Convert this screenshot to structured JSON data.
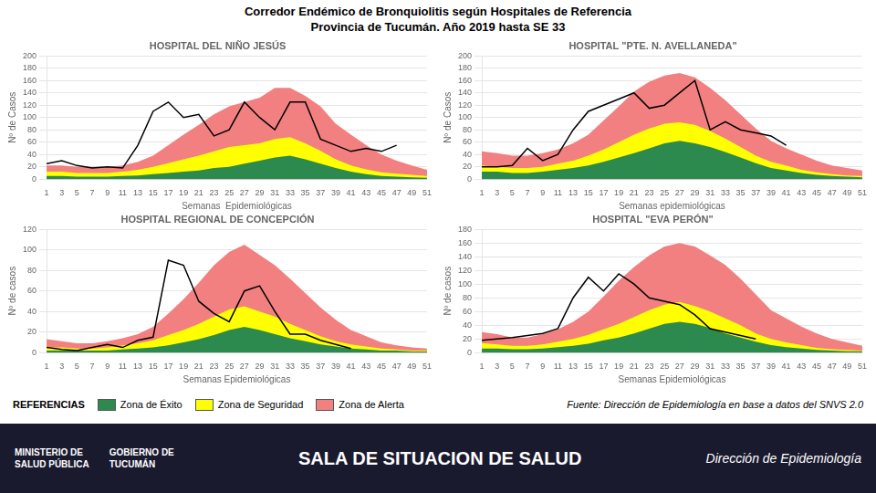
{
  "title": "Corredor Endémico de Bronquiolitis según Hospitales de Referencia",
  "subtitle": "Provincia de Tucumán.  Año 2019 hasta SE 33",
  "legend": "lower left",
  "annotations": [
    "REFERENCIAS",
    "Fuente: Dirección de Epidemiología en base a datos del SNVS 2.0",
    "MINISTERIO DE",
    "SALUD PÚBLICA",
    "GOBIERNO DE",
    "TUCUMÁN",
    "SALA DE SITUACION DE SALUD",
    "Dirección de Epidemiología"
  ],
  "chart_data": [
    {
      "type": "line",
      "title": "HOSPITAL DEL NIÑO JESÚS",
      "xlabel": "Semanas  Epidemiológicas",
      "ylabel": "Nº de Casos",
      "x": [
        1,
        3,
        5,
        7,
        9,
        11,
        13,
        15,
        17,
        19,
        21,
        23,
        25,
        27,
        29,
        31,
        33,
        35,
        37,
        39,
        41,
        43,
        45,
        47,
        49,
        51
      ],
      "xlim": [
        1,
        51
      ],
      "xticks": [
        1,
        3,
        5,
        7,
        9,
        11,
        13,
        15,
        17,
        19,
        21,
        23,
        25,
        27,
        29,
        31,
        33,
        35,
        37,
        39,
        41,
        43,
        45,
        47,
        49,
        51
      ],
      "ylim": [
        0,
        200
      ],
      "yticks": [
        0,
        20,
        40,
        60,
        80,
        100,
        120,
        140,
        160,
        180,
        200
      ],
      "grid": "y",
      "series": [
        {
          "name": "Zona de Éxito",
          "type": "area",
          "color": "#2d8a4e",
          "values": [
            5,
            5,
            4,
            4,
            4,
            5,
            6,
            8,
            10,
            12,
            14,
            18,
            20,
            25,
            30,
            35,
            38,
            32,
            25,
            18,
            12,
            8,
            5,
            4,
            3,
            2
          ]
        },
        {
          "name": "Zona de Seguridad",
          "type": "area",
          "color": "#ffff00",
          "values": [
            12,
            12,
            10,
            10,
            10,
            12,
            15,
            20,
            26,
            32,
            38,
            45,
            52,
            55,
            58,
            65,
            68,
            58,
            46,
            32,
            22,
            16,
            11,
            9,
            7,
            5
          ]
        },
        {
          "name": "Zona de Alerta",
          "type": "area",
          "color": "#f28080",
          "values": [
            22,
            22,
            20,
            20,
            20,
            22,
            28,
            38,
            55,
            72,
            88,
            105,
            118,
            125,
            132,
            148,
            148,
            135,
            118,
            90,
            72,
            55,
            40,
            30,
            22,
            15
          ]
        },
        {
          "type": "line",
          "color": "#000000",
          "values": [
            25,
            30,
            22,
            18,
            20,
            18,
            55,
            110,
            125,
            100,
            105,
            70,
            80,
            125,
            100,
            80,
            125,
            125,
            65,
            55,
            45,
            50,
            45,
            55,
            null,
            null
          ]
        }
      ]
    },
    {
      "type": "line",
      "title": "HOSPITAL \"PTE. N. AVELLANEDA\"",
      "xlabel": "Semanas epidemiológicas",
      "ylabel": "Nº de Casos",
      "x": [
        1,
        3,
        5,
        7,
        9,
        11,
        13,
        15,
        17,
        19,
        21,
        23,
        25,
        27,
        29,
        31,
        33,
        35,
        37,
        39,
        41,
        43,
        45,
        47,
        49,
        51
      ],
      "xlim": [
        1,
        51
      ],
      "xticks": [
        1,
        3,
        5,
        7,
        9,
        11,
        13,
        15,
        17,
        19,
        21,
        23,
        25,
        27,
        29,
        31,
        33,
        35,
        37,
        39,
        41,
        43,
        45,
        47,
        49,
        51
      ],
      "ylim": [
        0,
        200
      ],
      "yticks": [
        0,
        20,
        40,
        60,
        80,
        100,
        120,
        140,
        160,
        180,
        200
      ],
      "grid": "y",
      "series": [
        {
          "name": "Zona de Éxito",
          "type": "area",
          "color": "#2d8a4e",
          "values": [
            12,
            12,
            10,
            10,
            12,
            15,
            18,
            22,
            28,
            35,
            42,
            50,
            58,
            62,
            58,
            52,
            44,
            35,
            26,
            18,
            14,
            10,
            7,
            5,
            4,
            3
          ]
        },
        {
          "name": "Zona de Seguridad",
          "type": "area",
          "color": "#ffff00",
          "values": [
            22,
            20,
            18,
            18,
            20,
            25,
            30,
            38,
            48,
            60,
            72,
            82,
            90,
            92,
            88,
            78,
            66,
            52,
            38,
            28,
            22,
            15,
            11,
            8,
            6,
            5
          ]
        },
        {
          "name": "Zona de Alerta",
          "type": "area",
          "color": "#f28080",
          "values": [
            45,
            42,
            38,
            38,
            42,
            48,
            58,
            72,
            95,
            118,
            142,
            158,
            168,
            172,
            165,
            148,
            128,
            105,
            82,
            62,
            50,
            40,
            30,
            22,
            18,
            14
          ]
        },
        {
          "type": "line",
          "color": "#000000",
          "values": [
            20,
            20,
            22,
            50,
            30,
            40,
            80,
            110,
            120,
            130,
            140,
            115,
            120,
            140,
            160,
            80,
            93,
            80,
            75,
            70,
            55,
            null,
            null,
            null,
            null,
            null
          ]
        }
      ]
    },
    {
      "type": "line",
      "title": "HOSPITAL REGIONAL DE CONCEPCIÓN",
      "xlabel": "Semanas Epidemiológicas",
      "ylabel": "Nº de casos",
      "x": [
        1,
        3,
        5,
        7,
        9,
        11,
        13,
        15,
        17,
        19,
        21,
        23,
        25,
        27,
        29,
        31,
        33,
        35,
        37,
        39,
        41,
        43,
        45,
        47,
        49,
        51
      ],
      "xlim": [
        1,
        51
      ],
      "xticks": [
        1,
        3,
        5,
        7,
        9,
        11,
        13,
        15,
        17,
        19,
        21,
        23,
        25,
        27,
        29,
        31,
        33,
        35,
        37,
        39,
        41,
        43,
        45,
        47,
        49,
        51
      ],
      "ylim": [
        0,
        120
      ],
      "yticks": [
        0,
        20,
        40,
        60,
        80,
        100,
        120
      ],
      "grid": "y",
      "series": [
        {
          "name": "Zona de Éxito",
          "type": "area",
          "color": "#2d8a4e",
          "values": [
            2,
            2,
            2,
            2,
            2,
            3,
            4,
            5,
            7,
            10,
            13,
            17,
            22,
            25,
            22,
            18,
            14,
            11,
            8,
            6,
            4,
            3,
            2,
            2,
            1,
            1
          ]
        },
        {
          "name": "Zona de Seguridad",
          "type": "area",
          "color": "#ffff00",
          "values": [
            5,
            5,
            4,
            4,
            5,
            7,
            9,
            12,
            17,
            22,
            28,
            35,
            42,
            45,
            40,
            35,
            28,
            22,
            16,
            11,
            8,
            6,
            4,
            3,
            2,
            2
          ]
        },
        {
          "name": "Zona de Alerta",
          "type": "area",
          "color": "#f28080",
          "values": [
            13,
            11,
            9,
            9,
            11,
            14,
            18,
            25,
            38,
            52,
            68,
            85,
            98,
            105,
            95,
            85,
            72,
            58,
            44,
            32,
            22,
            16,
            10,
            7,
            5,
            4
          ]
        },
        {
          "type": "line",
          "color": "#000000",
          "values": [
            5,
            3,
            2,
            5,
            8,
            5,
            12,
            15,
            90,
            85,
            50,
            38,
            30,
            60,
            65,
            40,
            18,
            18,
            12,
            8,
            4,
            null,
            null,
            null,
            null,
            null
          ]
        }
      ]
    },
    {
      "type": "line",
      "title": "HOSPITAL \"EVA PERÓN\"",
      "xlabel": "Semanas Epidemiológicas",
      "ylabel": "Nº de casos",
      "x": [
        1,
        3,
        5,
        7,
        9,
        11,
        13,
        15,
        17,
        19,
        21,
        23,
        25,
        27,
        29,
        31,
        33,
        35,
        37,
        39,
        41,
        43,
        45,
        47,
        49,
        51
      ],
      "xlim": [
        1,
        51
      ],
      "xticks": [
        1,
        3,
        5,
        7,
        9,
        11,
        13,
        15,
        17,
        19,
        21,
        23,
        25,
        27,
        29,
        31,
        33,
        35,
        37,
        39,
        41,
        43,
        45,
        47,
        49,
        51
      ],
      "ylim": [
        0,
        180
      ],
      "yticks": [
        0,
        20,
        40,
        60,
        80,
        100,
        120,
        140,
        160,
        180
      ],
      "grid": "y",
      "series": [
        {
          "name": "Zona de Éxito",
          "type": "area",
          "color": "#2d8a4e",
          "values": [
            6,
            6,
            5,
            5,
            6,
            8,
            10,
            13,
            18,
            22,
            28,
            35,
            42,
            45,
            42,
            36,
            28,
            22,
            16,
            11,
            8,
            6,
            4,
            3,
            2,
            2
          ]
        },
        {
          "name": "Zona de Seguridad",
          "type": "area",
          "color": "#ffff00",
          "values": [
            14,
            12,
            10,
            10,
            12,
            16,
            20,
            26,
            34,
            42,
            52,
            62,
            70,
            74,
            68,
            60,
            50,
            40,
            28,
            20,
            15,
            11,
            7,
            5,
            4,
            3
          ]
        },
        {
          "name": "Zona de Alerta",
          "type": "area",
          "color": "#f28080",
          "values": [
            30,
            27,
            22,
            22,
            27,
            34,
            45,
            60,
            82,
            105,
            125,
            142,
            155,
            160,
            155,
            142,
            128,
            108,
            85,
            62,
            50,
            38,
            28,
            20,
            15,
            10
          ]
        },
        {
          "type": "line",
          "color": "#000000",
          "values": [
            18,
            20,
            22,
            25,
            28,
            35,
            80,
            110,
            90,
            115,
            100,
            80,
            75,
            70,
            55,
            35,
            30,
            25,
            20,
            null,
            null,
            null,
            null,
            null,
            null,
            null
          ]
        }
      ]
    }
  ]
}
